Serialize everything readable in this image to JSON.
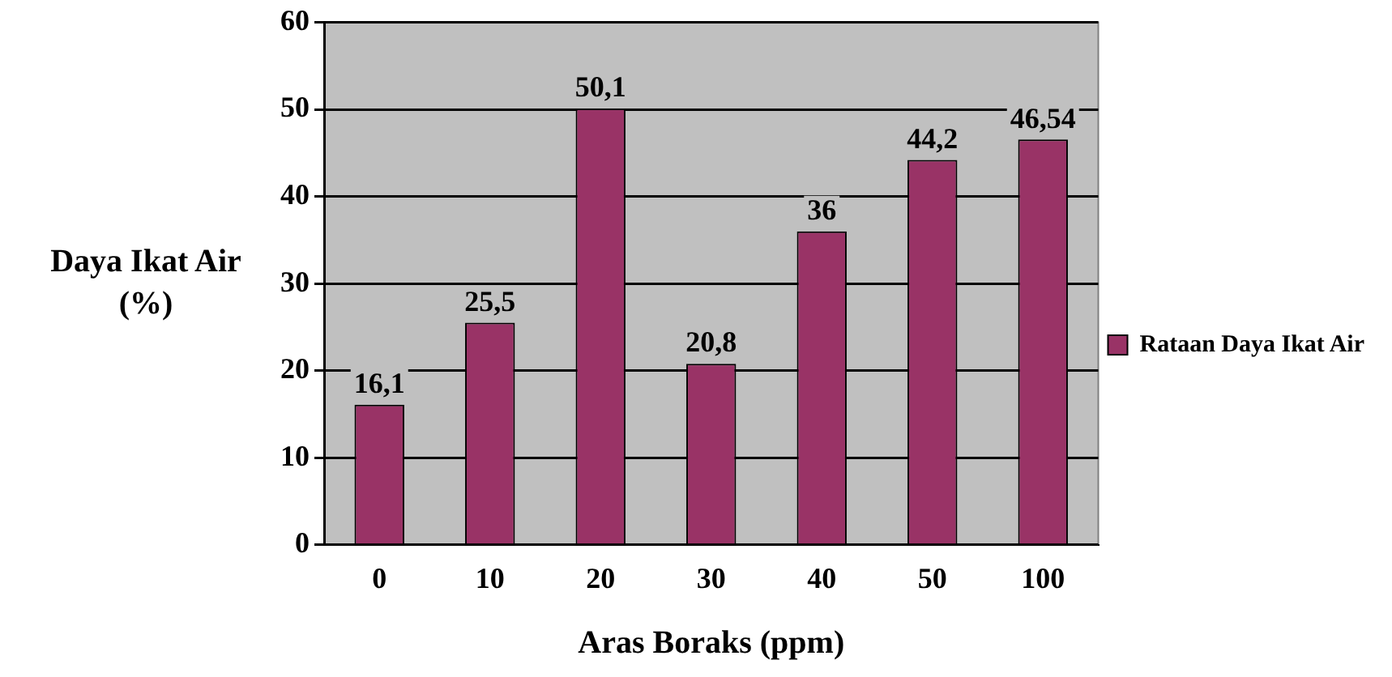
{
  "chart_data": {
    "type": "bar",
    "xlabel": "Aras Boraks (ppm)",
    "ylabel": "Daya Ikat Air (%)",
    "categories": [
      "0",
      "10",
      "20",
      "30",
      "40",
      "50",
      "100"
    ],
    "series": [
      {
        "name": "Rataan Daya Ikat Air",
        "color": "#993366",
        "values": [
          16.1,
          25.5,
          50.1,
          20.8,
          36,
          44.2,
          46.54
        ],
        "value_labels": [
          "16,1",
          "25,5",
          "50,1",
          "20,8",
          "36",
          "44,2",
          "46,54"
        ]
      }
    ],
    "ylim": [
      0,
      60
    ],
    "yticks": [
      0,
      10,
      20,
      30,
      40,
      50,
      60
    ],
    "grid": "y",
    "legend": "right"
  }
}
